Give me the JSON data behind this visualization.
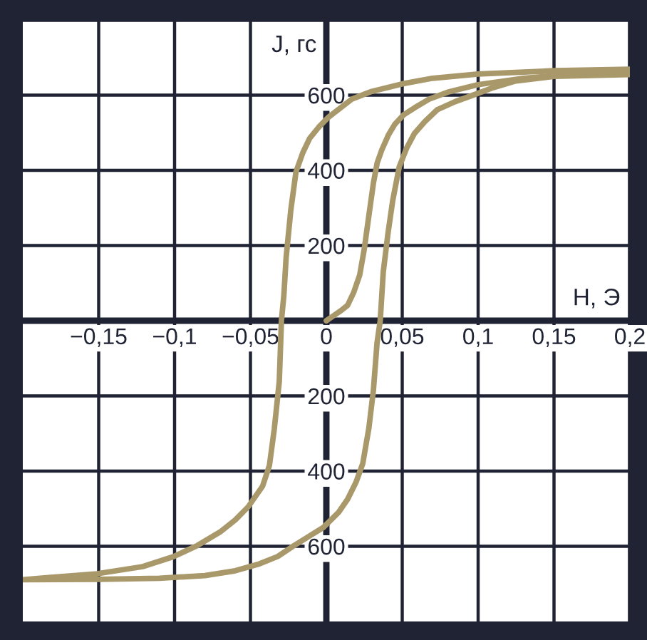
{
  "chart_data": {
    "type": "line",
    "xlabel": "H, Э",
    "ylabel": "J, гс",
    "xlim": [
      -0.2,
      0.2
    ],
    "ylim": [
      -800,
      800
    ],
    "xticks": [
      {
        "value": -0.15,
        "label": "−0,15"
      },
      {
        "value": -0.1,
        "label": "−0,1"
      },
      {
        "value": -0.05,
        "label": "−0,05"
      },
      0,
      {
        "value": 0.05,
        "label": "0,05"
      },
      {
        "value": 0.1,
        "label": "0,1"
      },
      {
        "value": 0.15,
        "label": "0,15"
      },
      {
        "value": 0.2,
        "label": "0,2"
      }
    ],
    "yticks": [
      {
        "value": -600,
        "label": "600"
      },
      {
        "value": -400,
        "label": "400"
      },
      {
        "value": -200,
        "label": "200"
      },
      200,
      400,
      600
    ],
    "grid": true,
    "line_style": "solid",
    "series": [
      {
        "color": "#a9986a",
        "x": [
          0,
          0.005,
          0.01,
          0.014,
          0.018,
          0.022,
          0.025,
          0.028,
          0.031,
          0.0335,
          0.0365,
          0.041,
          0.045,
          0.051,
          0.058,
          0.068,
          0.08,
          0.1,
          0.13,
          0.16,
          0.2
        ],
        "values": [
          0,
          14,
          28,
          41,
          75,
          122,
          191,
          279,
          366,
          420,
          454,
          495,
          522,
          548,
          566,
          590,
          608,
          628,
          645,
          655,
          660
        ]
      },
      {
        "color": "#a9986a",
        "x": [
          0.2,
          0.15,
          0.1,
          0.07,
          0.05,
          0.03,
          0.017,
          0.0016,
          -0.005,
          -0.011,
          -0.0155,
          -0.02,
          -0.0234,
          -0.0265,
          -0.028,
          -0.0296,
          -0.031,
          -0.0343,
          -0.0375,
          -0.042,
          -0.0515,
          -0.06,
          -0.07,
          -0.085,
          -0.101,
          -0.121,
          -0.151,
          -0.183,
          -0.2,
          -0.15,
          -0.11,
          -0.08,
          -0.06,
          -0.045,
          -0.032,
          -0.022,
          -0.012,
          -0.002,
          0.008,
          0.014,
          0.0195,
          0.024,
          0.028,
          0.031,
          0.0334,
          0.0355,
          0.0375,
          0.0406,
          0.0437,
          0.048,
          0.053,
          0.058,
          0.065,
          0.073,
          0.085,
          0.096,
          0.11,
          0.124,
          0.15,
          0.2
        ],
        "values": [
          669,
          665,
          656,
          645,
          630,
          610,
          590,
          542,
          515,
          485,
          447,
          396,
          295,
          168,
          67,
          0,
          -161,
          -288,
          -385,
          -440,
          -495,
          -530,
          -562,
          -598,
          -628,
          -654,
          -673,
          -683,
          -689,
          -688,
          -685,
          -678,
          -665,
          -648,
          -627,
          -600,
          -575,
          -550,
          -510,
          -475,
          -430,
          -380,
          -286,
          -185,
          -59,
          0,
          130,
          232,
          319,
          409,
          460,
          498,
          530,
          561,
          583,
          599,
          620,
          637,
          650,
          655
        ]
      }
    ]
  }
}
